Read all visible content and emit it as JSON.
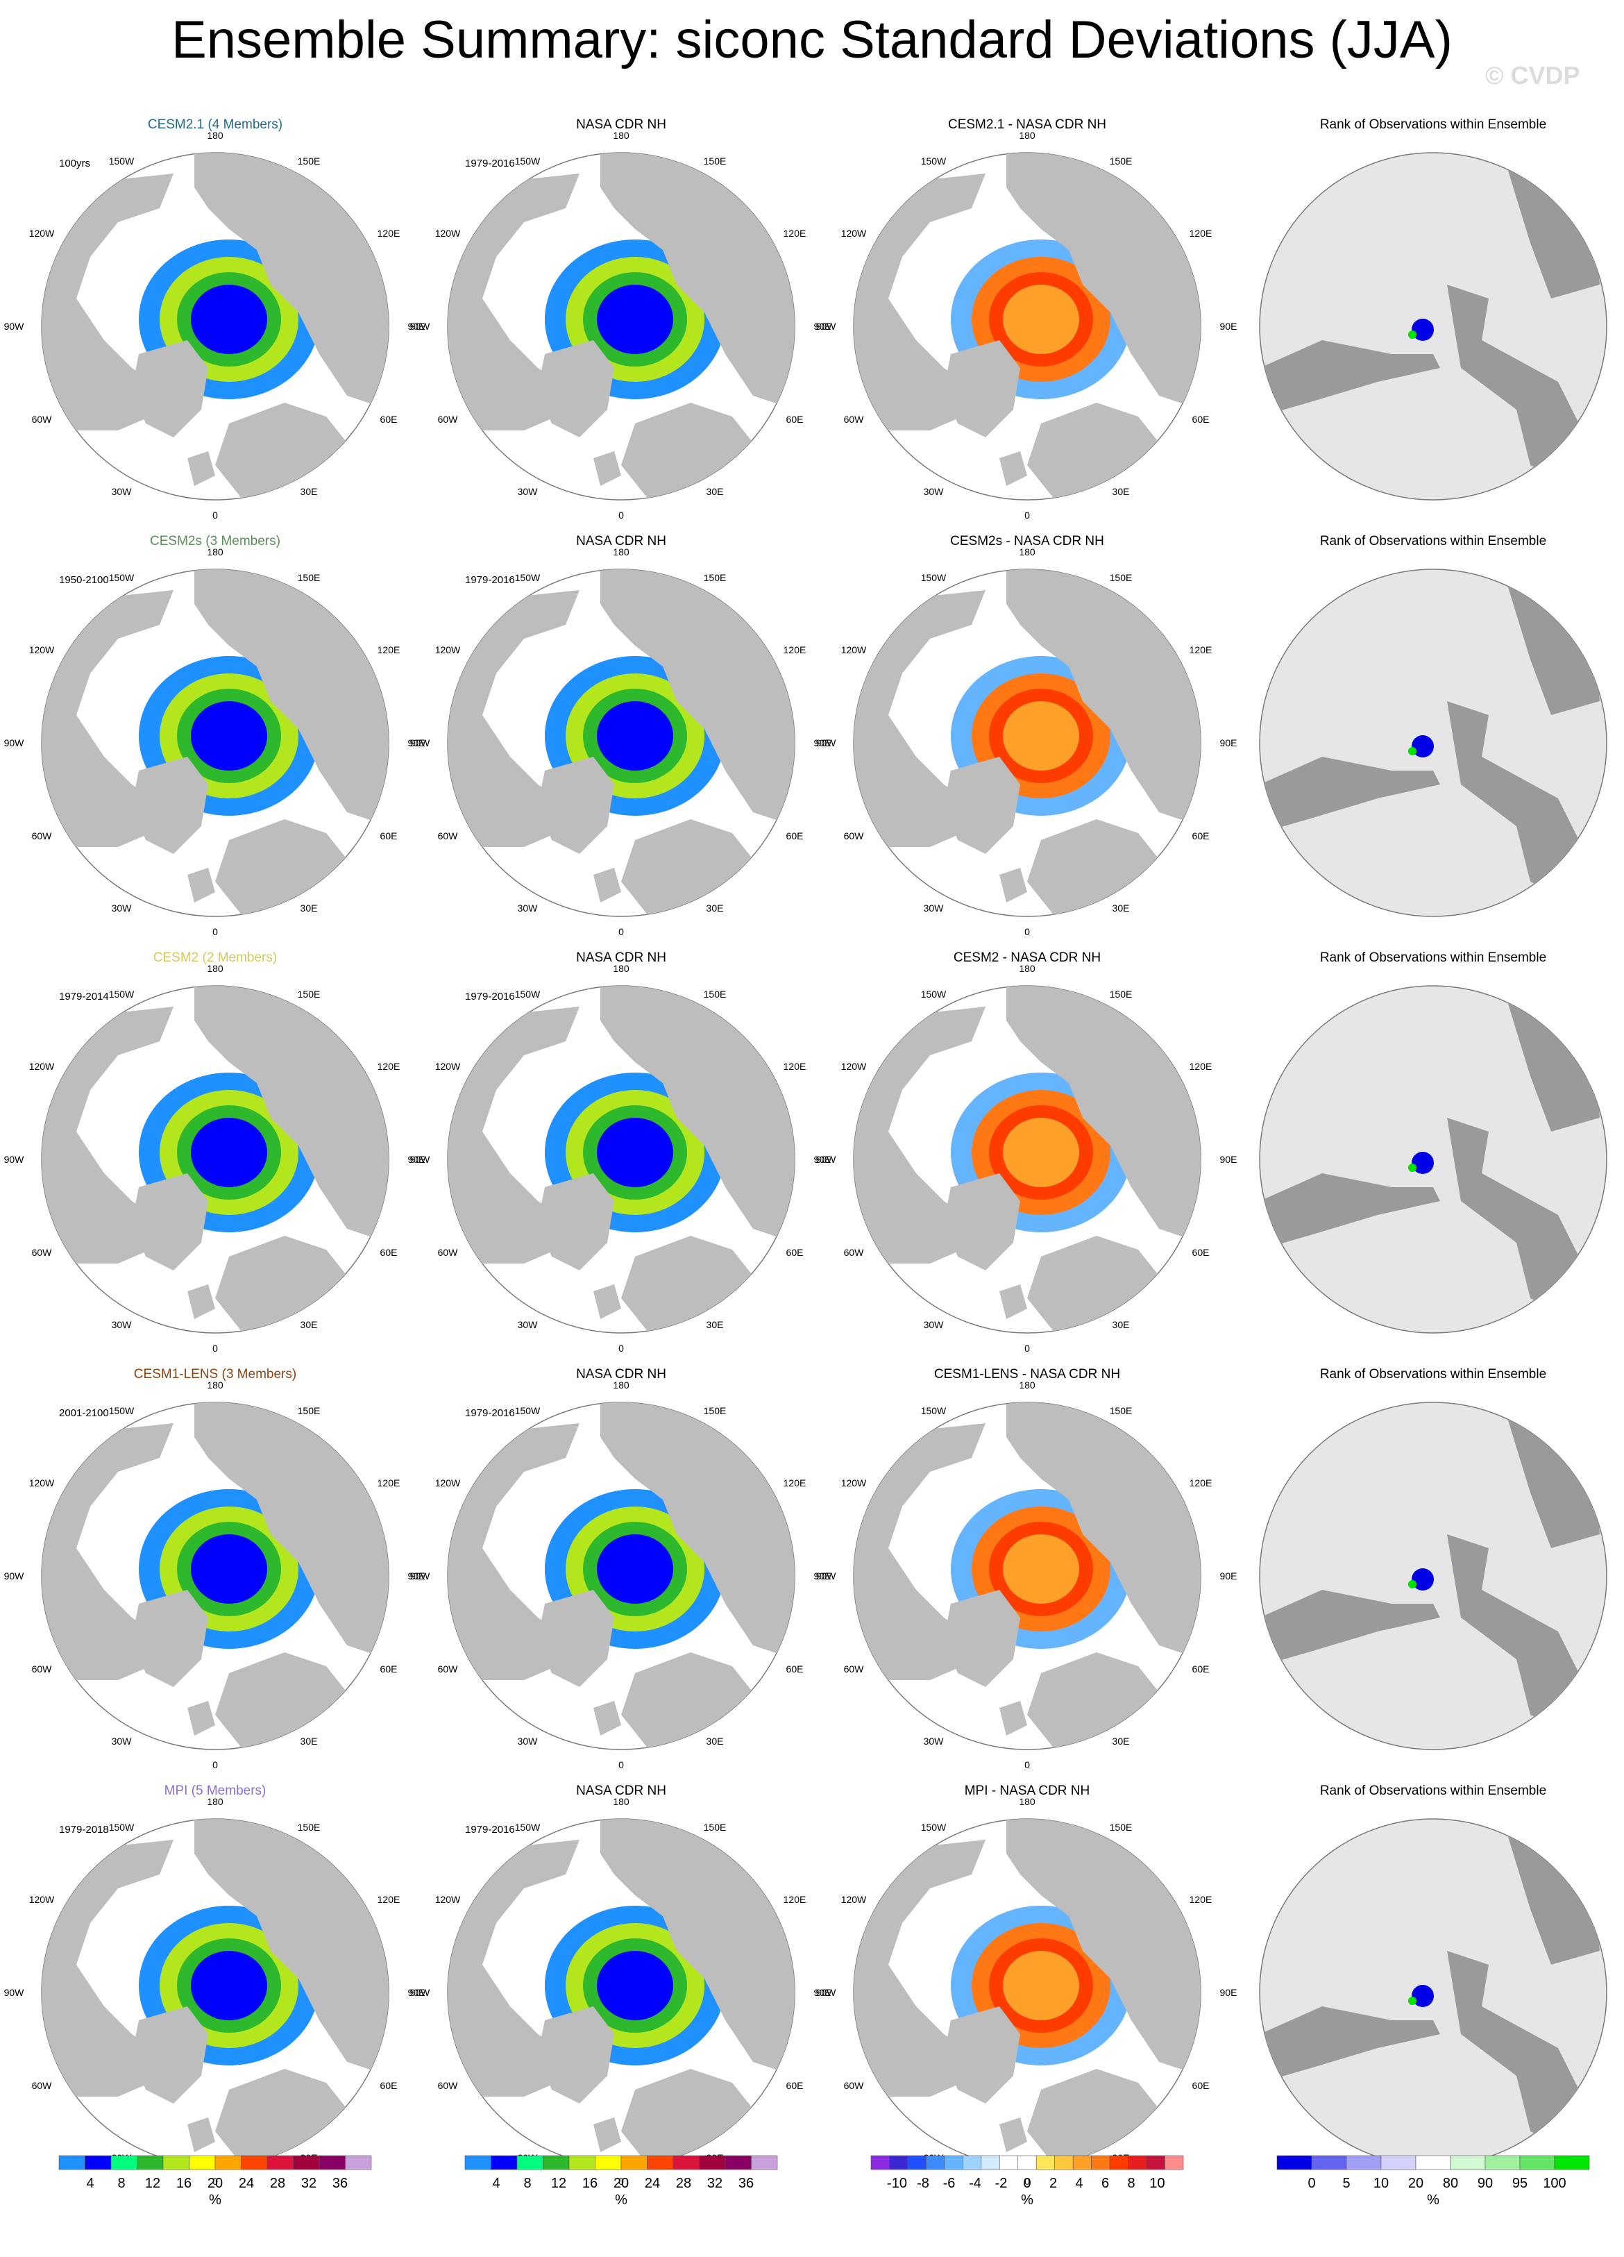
{
  "title": "Ensemble Summary: siconc Standard Deviations (JJA)",
  "watermark": "© CVDP",
  "column_titles": {
    "obs": "NASA CDR NH",
    "rank": "Rank of Observations within Ensemble"
  },
  "obs_years": "1979-2016",
  "lon_labels": [
    "180",
    "150E",
    "120E",
    "90E",
    "60E",
    "30E",
    "0",
    "30W",
    "60W",
    "90W",
    "120W",
    "150W"
  ],
  "rows": [
    {
      "model": "CESM2.1 (4 Members)",
      "model_color": "#1f6b8f",
      "years": "100yrs",
      "diff_title": "CESM2.1 - NASA CDR NH"
    },
    {
      "model": "CESM2s (3 Members)",
      "model_color": "#5a8f5a",
      "years": "1950-2100",
      "diff_title": "CESM2s - NASA CDR NH"
    },
    {
      "model": "CESM2 (2 Members)",
      "model_color": "#d9c75a",
      "years": "1979-2014",
      "diff_title": "CESM2 - NASA CDR NH"
    },
    {
      "model": "CESM1-LENS (3 Members)",
      "model_color": "#8b4513",
      "years": "2001-2100",
      "diff_title": "CESM1-LENS - NASA CDR NH"
    },
    {
      "model": "MPI (5 Members)",
      "model_color": "#8a6fd6",
      "years": "1979-2018",
      "diff_title": "MPI - NASA CDR NH"
    }
  ],
  "colorbars": {
    "std": {
      "labels": [
        "4",
        "8",
        "12",
        "16",
        "20",
        "24",
        "28",
        "32",
        "36"
      ],
      "unit": "%",
      "colors": [
        "#1e90ff",
        "#0000ff",
        "#00ff7f",
        "#2db82d",
        "#b4e61e",
        "#ffff00",
        "#ffa500",
        "#ff4500",
        "#dc143c",
        "#a0003c",
        "#8b0064",
        "#c8a0dc"
      ]
    },
    "diff": {
      "labels": [
        "-10",
        "-8",
        "-6",
        "-4",
        "-2",
        "0",
        "2",
        "4",
        "6",
        "8",
        "10"
      ],
      "unit": "%",
      "colors": [
        "#8a2be2",
        "#3c28d2",
        "#1e50ff",
        "#3c8cff",
        "#64b4ff",
        "#a0d2ff",
        "#d2ebff",
        "#ffffff",
        "#ffffff",
        "#ffe65a",
        "#ffc83c",
        "#ffa028",
        "#ff7814",
        "#ff3c00",
        "#e61e1e",
        "#c8143c",
        "#ff8c8c"
      ]
    },
    "rank": {
      "labels": [
        "0",
        "5",
        "10",
        "20",
        "80",
        "90",
        "95",
        "100"
      ],
      "unit": "%",
      "colors": [
        "#0000e6",
        "#6464f0",
        "#a0a0f5",
        "#d2d2fa",
        "#ffffff",
        "#d2fad2",
        "#a0f0a0",
        "#64e664",
        "#00e600"
      ]
    }
  }
}
